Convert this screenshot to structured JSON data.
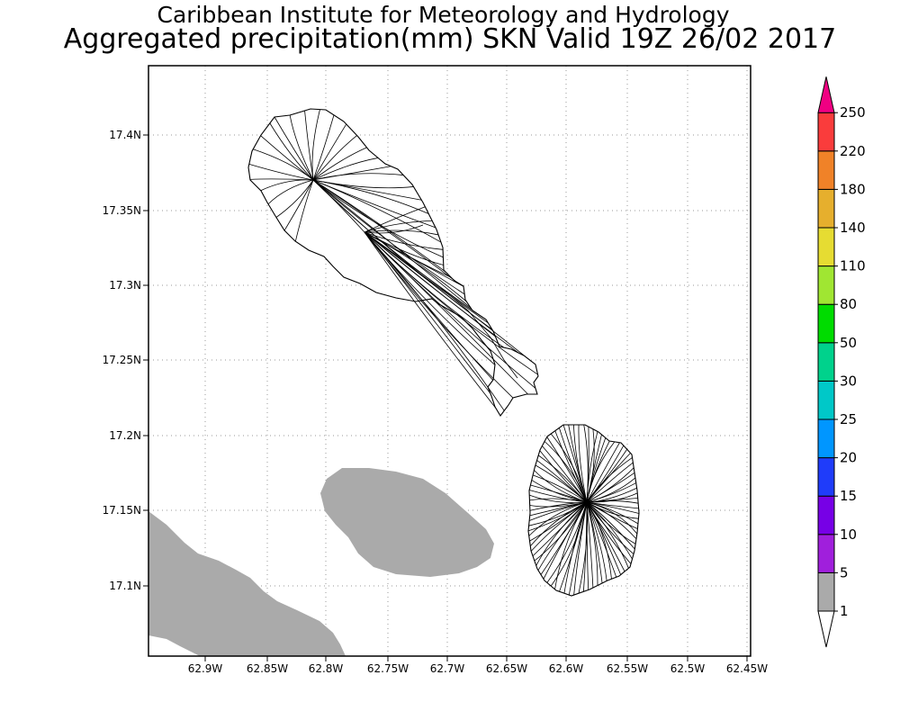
{
  "header": {
    "title_line1": "Caribbean Institute for Meteorology and Hydrology",
    "title_line2": "Aggregated precipitation(mm) SKN Valid 19Z 26/02 2017"
  },
  "map": {
    "lat_labels": [
      "17.4N",
      "17.35N",
      "17.3N",
      "17.25N",
      "17.2N",
      "17.15N",
      "17.1N"
    ],
    "lon_labels": [
      "62.9W",
      "62.85W",
      "62.8W",
      "62.75W",
      "62.7W",
      "62.65W",
      "62.6W",
      "62.55W",
      "62.5W",
      "62.45W"
    ],
    "grid": "dotted",
    "precip_fill_color": "#aaaaaa"
  },
  "legend": {
    "levels": [
      "1",
      "5",
      "10",
      "15",
      "20",
      "25",
      "30",
      "50",
      "80",
      "110",
      "140",
      "180",
      "220",
      "250"
    ],
    "colors": [
      "#aaaaaa",
      "#a01fdc",
      "#7700e6",
      "#1f3cfa",
      "#0096ff",
      "#00c8c8",
      "#00d28c",
      "#00dc00",
      "#a0e632",
      "#e6dc32",
      "#e6af2d",
      "#f08228",
      "#fa3c3c",
      "#f00082"
    ]
  }
}
